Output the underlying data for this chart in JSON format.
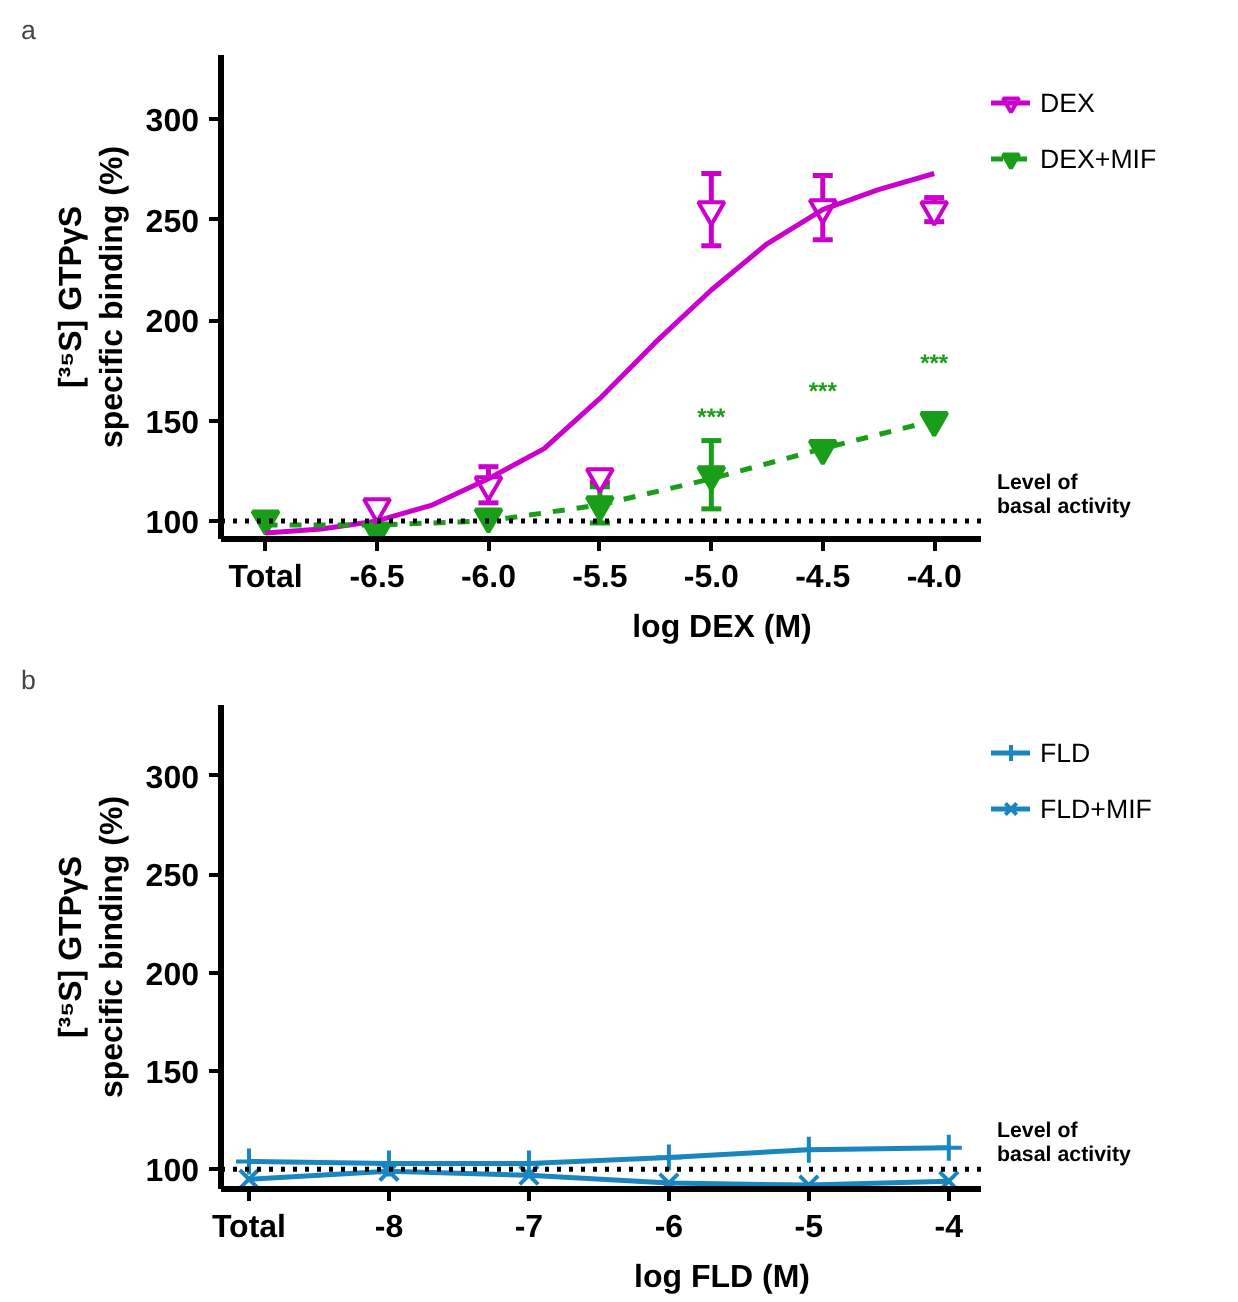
{
  "chart_data": [
    {
      "type": "scatter",
      "xlabel": "log DEX (M)",
      "ylabel": "[³⁵S] GTPγS\nspecific binding (%)",
      "x": [
        -7,
        -6.5,
        -6,
        -5.5,
        -5,
        -4.5,
        -4
      ],
      "xlim": [
        -7.2,
        -3.79
      ],
      "xticks": [
        {
          "value": -7,
          "label": "Total"
        },
        -6.5,
        {
          "value": -6,
          "label": "-6.0"
        },
        -5.5,
        {
          "value": -5,
          "label": "-5.0"
        },
        -4.5,
        {
          "value": -4,
          "label": "-4.0"
        }
      ],
      "ylim": [
        91,
        332
      ],
      "yticks": [
        100,
        150,
        200,
        250,
        300
      ],
      "series": [
        {
          "name": "DEX",
          "type": "scatter",
          "marker": "triangle",
          "color": "#cc00cc",
          "values": [
            null,
            107,
            118,
            122,
            255,
            256,
            255
          ],
          "errors": [
            null,
            null,
            9,
            3,
            18,
            16,
            6
          ]
        },
        {
          "name": "DEX+MIF",
          "type": "scatter",
          "marker": "triangle",
          "color": "#1a9e1a",
          "values": [
            101,
            95,
            102,
            108,
            123,
            136,
            150
          ],
          "errors": [
            null,
            null,
            null,
            9,
            17,
            null,
            null
          ]
        },
        {
          "type": "line",
          "line_style": "solid",
          "color": "#cc00cc",
          "x": [
            -7,
            -6.75,
            -6.5,
            -6.25,
            -6,
            -5.75,
            -5.5,
            -5.25,
            -5,
            -4.75,
            -4.5,
            -4.25,
            -4
          ],
          "values": [
            94,
            96,
            100,
            108,
            121,
            136,
            161,
            189,
            215,
            238,
            255,
            265,
            273
          ]
        },
        {
          "type": "line",
          "line_style": "dashed",
          "color": "#1a9e1a",
          "x": [
            -7,
            -6.5,
            -6,
            -5.5,
            -5,
            -4.5,
            -4
          ],
          "values": [
            98,
            98,
            100,
            108,
            121,
            136,
            150
          ]
        }
      ],
      "ref_lines": [
        {
          "axis": "y",
          "value": 100,
          "label": "Level of\nbasal activity",
          "line_style": "dotted",
          "color": "#000000"
        }
      ],
      "annotations": [
        "a",
        {
          "text": "***",
          "x": -5.0,
          "y": 123
        },
        {
          "text": "***",
          "x": -4.5,
          "y": 136
        },
        {
          "text": "***",
          "x": -4.0,
          "y": 150
        }
      ],
      "legend": "top right",
      "grid": false
    },
    {
      "type": "line",
      "xlabel": "log FLD (M)",
      "ylabel": "[³⁵S] GTPγS\nspecific binding (%)",
      "x": [
        -9,
        -8,
        -7,
        -6,
        -5,
        -4
      ],
      "xlim": [
        -9.2,
        -3.77
      ],
      "xticks": [
        {
          "value": -9,
          "label": "Total"
        },
        -8,
        -7,
        -6,
        -5,
        -4
      ],
      "ylim": [
        90,
        336
      ],
      "yticks": [
        100,
        150,
        200,
        250,
        300
      ],
      "series": [
        {
          "name": "FLD",
          "marker": "cross",
          "color": "#1a86c0",
          "values": [
            104,
            103,
            103,
            106,
            110,
            111
          ]
        },
        {
          "name": "FLD+MIF",
          "marker": "cross",
          "color": "#1a86c0",
          "values": [
            95,
            99,
            97,
            93,
            92,
            94
          ]
        }
      ],
      "ref_lines": [
        {
          "axis": "y",
          "value": 100,
          "label": "Level of\nbasal activity",
          "line_style": "dotted",
          "color": "#000000"
        }
      ],
      "annotations": [
        "b"
      ],
      "legend": "top right",
      "grid": false
    }
  ]
}
